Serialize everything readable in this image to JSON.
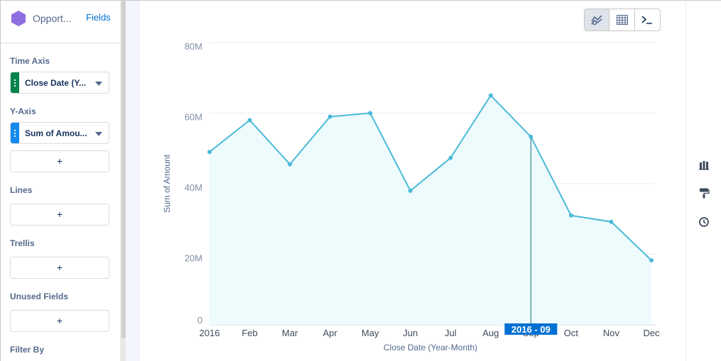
{
  "header": {
    "dataset_name": "Opport...",
    "fields_link": "Fields"
  },
  "panel": {
    "time_axis": {
      "label": "Time Axis",
      "value": "Close Date (Y..."
    },
    "y_axis": {
      "label": "Y-Axis",
      "value": "Sum of Amou..."
    },
    "add_symbol": "+",
    "lines_label": "Lines",
    "trellis_label": "Trellis",
    "unused_fields_label": "Unused Fields",
    "filter_by_label": "Filter By"
  },
  "toolbar": {
    "chart_icon": "line-chart-icon",
    "table_icon": "table-icon",
    "saql_icon": "console-icon"
  },
  "side_icons": [
    "bar-chart-icon",
    "paint-roller-icon",
    "clock-icon"
  ],
  "chart_data": {
    "type": "area",
    "categories": [
      "2016",
      "Feb",
      "Mar",
      "Apr",
      "May",
      "Jun",
      "Jul",
      "Aug",
      "Sep",
      "Oct",
      "Nov",
      "Dec"
    ],
    "values": [
      49,
      58,
      45.5,
      59,
      60,
      38,
      47.3,
      65,
      53.3,
      31,
      29.2,
      18.3
    ],
    "unit": "M",
    "xlabel": "Close Date (Year-Month)",
    "ylabel": "Sum of Amount",
    "ylim": [
      0,
      80
    ],
    "yticks": [
      "0",
      "20M",
      "40M",
      "60M",
      "80M"
    ],
    "ytick_values": [
      0,
      20,
      40,
      60,
      80
    ],
    "grid": true,
    "hover": {
      "index": 8,
      "label": "2016 - 09"
    },
    "colors": {
      "line": "#4bbad8",
      "fill": "#eefbfd",
      "point": "#4bbad8",
      "tooltip": "#0070d2",
      "grid": "#e8ebf0",
      "axis_text": "#7f8fa6"
    }
  }
}
